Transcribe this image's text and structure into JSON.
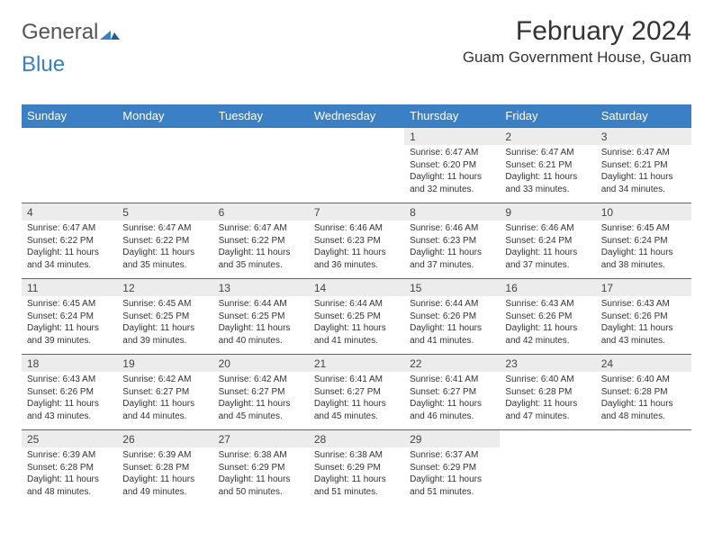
{
  "logo": {
    "part1": "General",
    "part2": "Blue"
  },
  "title": "February 2024",
  "location": "Guam Government House, Guam",
  "colors": {
    "header_bg": "#3b7fc4",
    "header_text": "#ffffff",
    "daynum_bg": "#ececec",
    "rule": "#3b6fa0",
    "text": "#333333"
  },
  "days_of_week": [
    "Sunday",
    "Monday",
    "Tuesday",
    "Wednesday",
    "Thursday",
    "Friday",
    "Saturday"
  ],
  "weeks": [
    [
      null,
      null,
      null,
      null,
      {
        "n": "1",
        "sunrise": "6:47 AM",
        "sunset": "6:20 PM",
        "daylight": "11 hours and 32 minutes."
      },
      {
        "n": "2",
        "sunrise": "6:47 AM",
        "sunset": "6:21 PM",
        "daylight": "11 hours and 33 minutes."
      },
      {
        "n": "3",
        "sunrise": "6:47 AM",
        "sunset": "6:21 PM",
        "daylight": "11 hours and 34 minutes."
      }
    ],
    [
      {
        "n": "4",
        "sunrise": "6:47 AM",
        "sunset": "6:22 PM",
        "daylight": "11 hours and 34 minutes."
      },
      {
        "n": "5",
        "sunrise": "6:47 AM",
        "sunset": "6:22 PM",
        "daylight": "11 hours and 35 minutes."
      },
      {
        "n": "6",
        "sunrise": "6:47 AM",
        "sunset": "6:22 PM",
        "daylight": "11 hours and 35 minutes."
      },
      {
        "n": "7",
        "sunrise": "6:46 AM",
        "sunset": "6:23 PM",
        "daylight": "11 hours and 36 minutes."
      },
      {
        "n": "8",
        "sunrise": "6:46 AM",
        "sunset": "6:23 PM",
        "daylight": "11 hours and 37 minutes."
      },
      {
        "n": "9",
        "sunrise": "6:46 AM",
        "sunset": "6:24 PM",
        "daylight": "11 hours and 37 minutes."
      },
      {
        "n": "10",
        "sunrise": "6:45 AM",
        "sunset": "6:24 PM",
        "daylight": "11 hours and 38 minutes."
      }
    ],
    [
      {
        "n": "11",
        "sunrise": "6:45 AM",
        "sunset": "6:24 PM",
        "daylight": "11 hours and 39 minutes."
      },
      {
        "n": "12",
        "sunrise": "6:45 AM",
        "sunset": "6:25 PM",
        "daylight": "11 hours and 39 minutes."
      },
      {
        "n": "13",
        "sunrise": "6:44 AM",
        "sunset": "6:25 PM",
        "daylight": "11 hours and 40 minutes."
      },
      {
        "n": "14",
        "sunrise": "6:44 AM",
        "sunset": "6:25 PM",
        "daylight": "11 hours and 41 minutes."
      },
      {
        "n": "15",
        "sunrise": "6:44 AM",
        "sunset": "6:26 PM",
        "daylight": "11 hours and 41 minutes."
      },
      {
        "n": "16",
        "sunrise": "6:43 AM",
        "sunset": "6:26 PM",
        "daylight": "11 hours and 42 minutes."
      },
      {
        "n": "17",
        "sunrise": "6:43 AM",
        "sunset": "6:26 PM",
        "daylight": "11 hours and 43 minutes."
      }
    ],
    [
      {
        "n": "18",
        "sunrise": "6:43 AM",
        "sunset": "6:26 PM",
        "daylight": "11 hours and 43 minutes."
      },
      {
        "n": "19",
        "sunrise": "6:42 AM",
        "sunset": "6:27 PM",
        "daylight": "11 hours and 44 minutes."
      },
      {
        "n": "20",
        "sunrise": "6:42 AM",
        "sunset": "6:27 PM",
        "daylight": "11 hours and 45 minutes."
      },
      {
        "n": "21",
        "sunrise": "6:41 AM",
        "sunset": "6:27 PM",
        "daylight": "11 hours and 45 minutes."
      },
      {
        "n": "22",
        "sunrise": "6:41 AM",
        "sunset": "6:27 PM",
        "daylight": "11 hours and 46 minutes."
      },
      {
        "n": "23",
        "sunrise": "6:40 AM",
        "sunset": "6:28 PM",
        "daylight": "11 hours and 47 minutes."
      },
      {
        "n": "24",
        "sunrise": "6:40 AM",
        "sunset": "6:28 PM",
        "daylight": "11 hours and 48 minutes."
      }
    ],
    [
      {
        "n": "25",
        "sunrise": "6:39 AM",
        "sunset": "6:28 PM",
        "daylight": "11 hours and 48 minutes."
      },
      {
        "n": "26",
        "sunrise": "6:39 AM",
        "sunset": "6:28 PM",
        "daylight": "11 hours and 49 minutes."
      },
      {
        "n": "27",
        "sunrise": "6:38 AM",
        "sunset": "6:29 PM",
        "daylight": "11 hours and 50 minutes."
      },
      {
        "n": "28",
        "sunrise": "6:38 AM",
        "sunset": "6:29 PM",
        "daylight": "11 hours and 51 minutes."
      },
      {
        "n": "29",
        "sunrise": "6:37 AM",
        "sunset": "6:29 PM",
        "daylight": "11 hours and 51 minutes."
      },
      null,
      null
    ]
  ],
  "labels": {
    "sunrise": "Sunrise:",
    "sunset": "Sunset:",
    "daylight": "Daylight:"
  }
}
